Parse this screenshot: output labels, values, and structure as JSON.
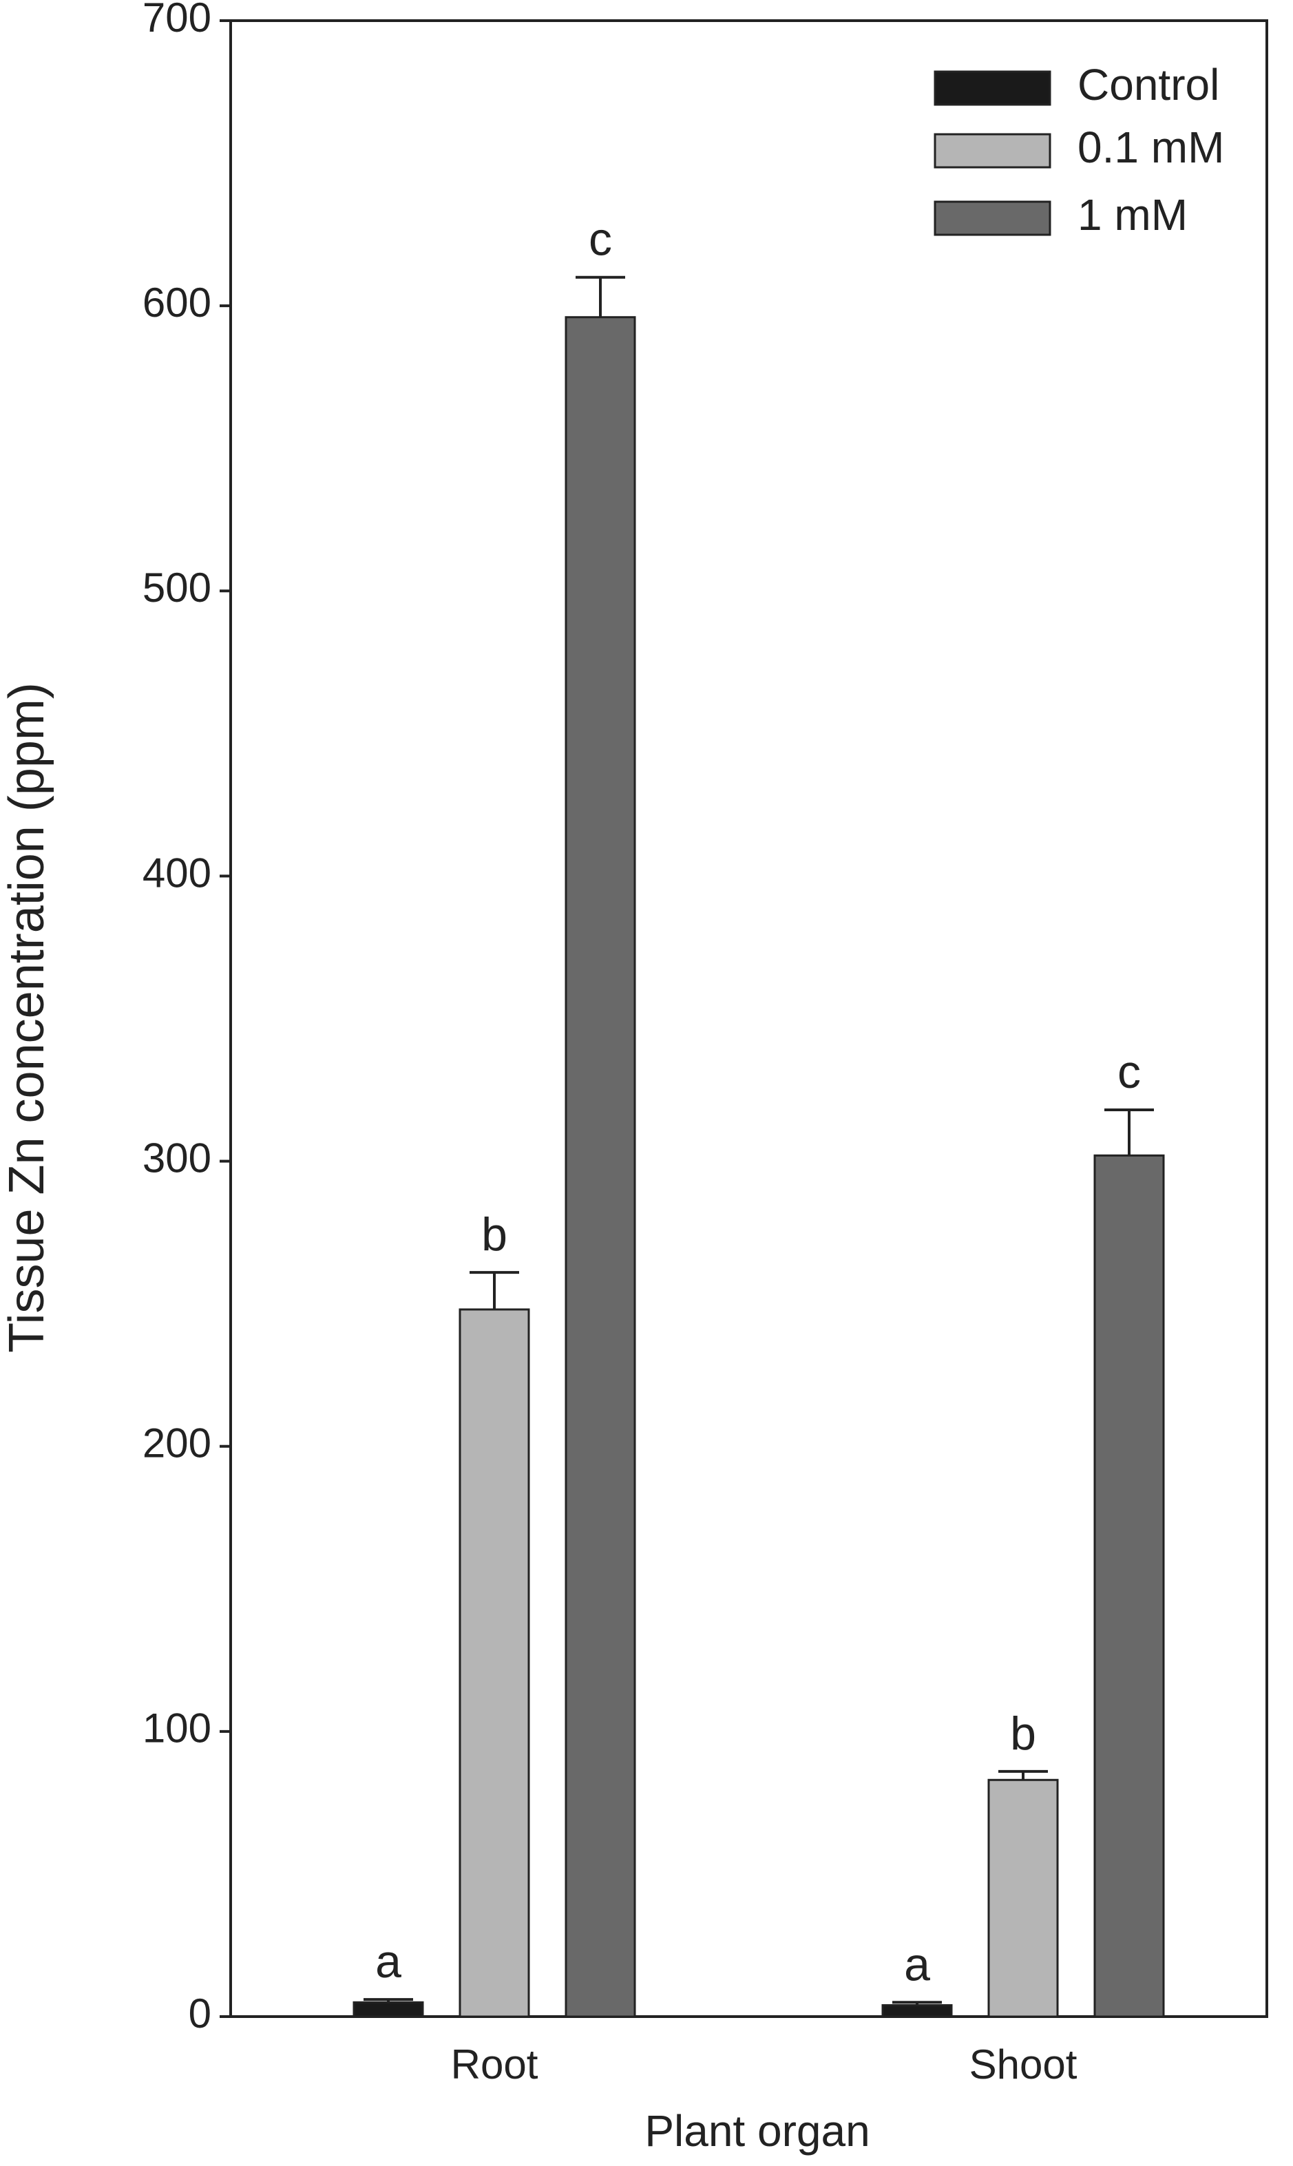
{
  "chart_data": {
    "type": "bar",
    "y_label": "Tissue Zn concentration (ppm)",
    "x_label": "Plant organ",
    "categories": [
      "Root",
      "Shoot"
    ],
    "series": [
      {
        "name": "Control",
        "color": "#1a1a1a",
        "values": [
          5,
          4
        ],
        "errors": [
          1,
          1
        ],
        "letters": [
          "a",
          "a"
        ]
      },
      {
        "name": "0.1 mM",
        "color": "#b5b5b5",
        "values": [
          248,
          83
        ],
        "errors": [
          13,
          3
        ],
        "letters": [
          "b",
          "b"
        ]
      },
      {
        "name": "1 mM",
        "color": "#696969",
        "values": [
          596,
          302
        ],
        "errors": [
          14,
          16
        ],
        "letters": [
          "c",
          "c"
        ]
      }
    ],
    "ylim": [
      0,
      700
    ],
    "yticks": [
      0,
      100,
      200,
      300,
      400,
      500,
      600,
      700
    ],
    "grid": false,
    "legend": "upper right"
  }
}
